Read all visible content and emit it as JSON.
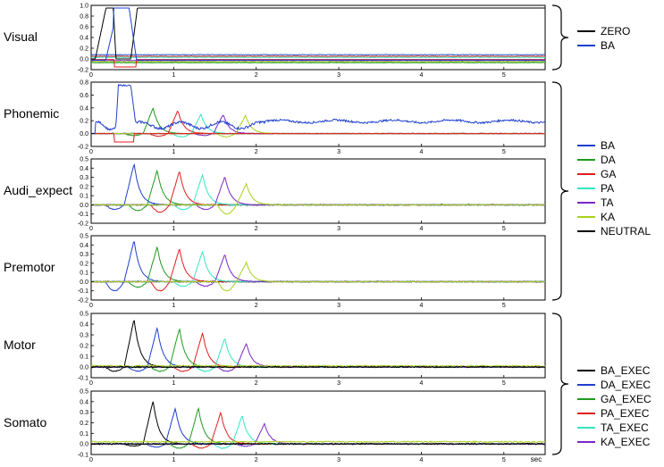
{
  "chart_data": {
    "type": "line",
    "xlabel": "sec",
    "xlim": [
      0,
      5.5
    ],
    "xticks": [
      0,
      1,
      2,
      3,
      4,
      5
    ],
    "grid": "none",
    "legend_groups": [
      {
        "entries": [
          {
            "name": "ZERO",
            "color": "#000000"
          },
          {
            "name": "BA",
            "color": "#1f3fcf"
          }
        ]
      },
      {
        "entries": [
          {
            "name": "BA",
            "color": "#1f3fcf"
          },
          {
            "name": "DA",
            "color": "#1e9a1e"
          },
          {
            "name": "GA",
            "color": "#e01e1e"
          },
          {
            "name": "PA",
            "color": "#33e6c0"
          },
          {
            "name": "TA",
            "color": "#7b28c8"
          },
          {
            "name": "KA",
            "color": "#a8d21a"
          },
          {
            "name": "NEUTRAL",
            "color": "#000000"
          }
        ]
      },
      {
        "entries": [
          {
            "name": "BA_EXEC",
            "color": "#000000"
          },
          {
            "name": "DA_EXEC",
            "color": "#1f3fcf"
          },
          {
            "name": "GA_EXEC",
            "color": "#1e9a1e"
          },
          {
            "name": "PA_EXEC",
            "color": "#e01e1e"
          },
          {
            "name": "TA_EXEC",
            "color": "#33e6c0"
          },
          {
            "name": "KA_EXEC",
            "color": "#7b28c8"
          }
        ]
      }
    ],
    "panels": [
      {
        "label": "Visual",
        "ylim": [
          -0.2,
          1.0
        ],
        "yticks": [
          "1.0",
          "0.8",
          "0.6",
          "0.4",
          "0.2",
          "0.0",
          "-0.2"
        ],
        "ytick_values": [
          1.0,
          0.8,
          0.6,
          0.4,
          0.2,
          0.0,
          -0.2
        ],
        "series": [
          {
            "color": "#2060d0",
            "style": "flat",
            "level": 0.08
          },
          {
            "color": "#e01e1e",
            "style": "flat",
            "level": 0.05
          },
          {
            "color": "#33e6c0",
            "style": "flat",
            "level": 0.03
          },
          {
            "color": "#7b28c8",
            "style": "flat",
            "level": -0.03
          },
          {
            "color": "#a8d21a",
            "style": "flat",
            "level": -0.05
          },
          {
            "color": "#1e9a1e",
            "style": "flat",
            "level": -0.07
          },
          {
            "color": "#e01e1e",
            "style": "visual-red"
          },
          {
            "color": "#000000",
            "style": "visual-zero"
          },
          {
            "color": "#1f3fcf",
            "style": "visual-ba"
          }
        ]
      },
      {
        "label": "Phonemic",
        "ylim": [
          -0.2,
          0.8
        ],
        "yticks": [
          "0.8",
          "0.6",
          "0.4",
          "0.2",
          "0.0",
          "-0.2"
        ],
        "ytick_values": [
          0.8,
          0.6,
          0.4,
          0.2,
          0.0,
          -0.2
        ],
        "series": [
          {
            "color": "#000000",
            "style": "flat",
            "level": 0.0
          },
          {
            "color": "#1e9a1e",
            "style": "peak",
            "t": 0.75,
            "amp": 0.4,
            "neg": -0.03
          },
          {
            "color": "#e01e1e",
            "style": "peak",
            "t": 1.05,
            "amp": 0.36,
            "neg": -0.04
          },
          {
            "color": "#33e6c0",
            "style": "peak",
            "t": 1.33,
            "amp": 0.3,
            "neg": -0.05
          },
          {
            "color": "#7b28c8",
            "style": "peak",
            "t": 1.6,
            "amp": 0.3,
            "neg": -0.03
          },
          {
            "color": "#a8d21a",
            "style": "peak",
            "t": 1.87,
            "amp": 0.28,
            "neg": -0.05
          },
          {
            "color": "#e01e1e",
            "style": "dip",
            "t": 0.3,
            "amp": -0.13
          },
          {
            "color": "#1f3fcf",
            "style": "phonemic-ba"
          }
        ]
      },
      {
        "label": "Audi_expect",
        "ylim": [
          -0.2,
          0.5
        ],
        "yticks": [
          "0.5",
          "0.4",
          "0.3",
          "0.2",
          "0.1",
          "0.0",
          "-0.1",
          "-0.2"
        ],
        "ytick_values": [
          0.5,
          0.4,
          0.3,
          0.2,
          0.1,
          0.0,
          -0.1,
          -0.2
        ],
        "series": [
          {
            "color": "#000000",
            "style": "noise",
            "level": 0.0
          },
          {
            "color": "#1f3fcf",
            "style": "peak",
            "t": 0.52,
            "amp": 0.45,
            "neg": -0.05
          },
          {
            "color": "#1e9a1e",
            "style": "peak",
            "t": 0.8,
            "amp": 0.38,
            "neg": -0.06
          },
          {
            "color": "#e01e1e",
            "style": "peak",
            "t": 1.07,
            "amp": 0.37,
            "neg": -0.08
          },
          {
            "color": "#33e6c0",
            "style": "peak",
            "t": 1.35,
            "amp": 0.33,
            "neg": -0.05
          },
          {
            "color": "#7b28c8",
            "style": "peak",
            "t": 1.62,
            "amp": 0.31,
            "neg": -0.05
          },
          {
            "color": "#a8d21a",
            "style": "peak",
            "t": 1.88,
            "amp": 0.23,
            "neg": -0.1
          }
        ]
      },
      {
        "label": "Premotor",
        "ylim": [
          -0.2,
          0.5
        ],
        "yticks": [
          "0.5",
          "0.4",
          "0.3",
          "0.2",
          "0.1",
          "0.0",
          "-0.1",
          "-0.2"
        ],
        "ytick_values": [
          0.5,
          0.4,
          0.3,
          0.2,
          0.1,
          0.0,
          -0.1,
          -0.2
        ],
        "series": [
          {
            "color": "#000000",
            "style": "noise",
            "level": 0.0
          },
          {
            "color": "#1f3fcf",
            "style": "peak",
            "t": 0.52,
            "amp": 0.45,
            "neg": -0.1
          },
          {
            "color": "#1e9a1e",
            "style": "peak",
            "t": 0.8,
            "amp": 0.38,
            "neg": -0.06
          },
          {
            "color": "#e01e1e",
            "style": "peak",
            "t": 1.07,
            "amp": 0.36,
            "neg": -0.1
          },
          {
            "color": "#33e6c0",
            "style": "peak",
            "t": 1.35,
            "amp": 0.33,
            "neg": -0.05
          },
          {
            "color": "#7b28c8",
            "style": "peak",
            "t": 1.62,
            "amp": 0.3,
            "neg": -0.05
          },
          {
            "color": "#a8d21a",
            "style": "peak",
            "t": 1.88,
            "amp": 0.21,
            "neg": -0.1
          }
        ]
      },
      {
        "label": "Motor",
        "ylim": [
          -0.1,
          0.5
        ],
        "yticks": [
          "0.5",
          "0.4",
          "0.3",
          "0.2",
          "0.1",
          "0.0",
          "-0.1"
        ],
        "ytick_values": [
          0.5,
          0.4,
          0.3,
          0.2,
          0.1,
          0.0,
          -0.1
        ],
        "series": [
          {
            "color": "#000000",
            "style": "peak",
            "t": 0.52,
            "amp": 0.45,
            "neg": -0.04
          },
          {
            "color": "#1f3fcf",
            "style": "peak",
            "t": 0.8,
            "amp": 0.37,
            "neg": -0.04
          },
          {
            "color": "#1e9a1e",
            "style": "peak",
            "t": 1.07,
            "amp": 0.36,
            "neg": -0.04
          },
          {
            "color": "#e01e1e",
            "style": "peak",
            "t": 1.35,
            "amp": 0.32,
            "neg": -0.04
          },
          {
            "color": "#33e6c0",
            "style": "peak",
            "t": 1.62,
            "amp": 0.27,
            "neg": -0.04
          },
          {
            "color": "#7b28c8",
            "style": "peak",
            "t": 1.88,
            "amp": 0.22,
            "neg": -0.04
          },
          {
            "color": "#a8d21a",
            "style": "noise",
            "level": 0.01
          },
          {
            "color": "#000000",
            "style": "noise",
            "level": 0.0
          }
        ]
      },
      {
        "label": "Somato",
        "ylim": [
          -0.1,
          0.5
        ],
        "yticks": [
          "0.5",
          "0.4",
          "0.3",
          "0.2",
          "0.1",
          "0.0",
          "-0.1"
        ],
        "ytick_values": [
          0.5,
          0.4,
          0.3,
          0.2,
          0.1,
          0.0,
          -0.1
        ],
        "series": [
          {
            "color": "#000000",
            "style": "peak",
            "t": 0.75,
            "amp": 0.41,
            "neg": -0.02
          },
          {
            "color": "#1f3fcf",
            "style": "peak",
            "t": 1.02,
            "amp": 0.34,
            "neg": -0.03
          },
          {
            "color": "#1e9a1e",
            "style": "peak",
            "t": 1.3,
            "amp": 0.34,
            "neg": -0.04
          },
          {
            "color": "#e01e1e",
            "style": "peak",
            "t": 1.57,
            "amp": 0.3,
            "neg": -0.04
          },
          {
            "color": "#33e6c0",
            "style": "peak",
            "t": 1.83,
            "amp": 0.27,
            "neg": -0.04
          },
          {
            "color": "#7b28c8",
            "style": "peak",
            "t": 2.1,
            "amp": 0.19,
            "neg": -0.02
          },
          {
            "color": "#a8d21a",
            "style": "noise",
            "level": 0.02
          },
          {
            "color": "#000000",
            "style": "noise",
            "level": 0.0
          }
        ]
      }
    ]
  }
}
